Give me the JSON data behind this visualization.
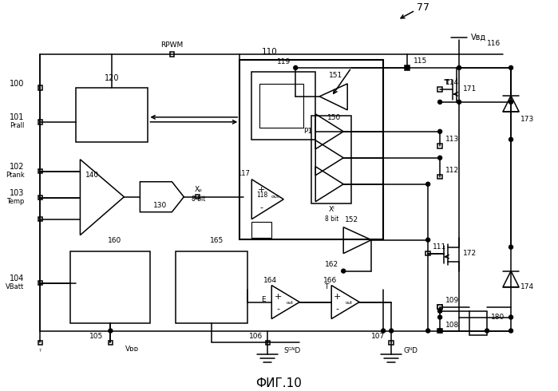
{
  "bg": "#ffffff",
  "lc": "#000000",
  "title": "ФИГ.10",
  "figsize": [
    6.99,
    4.9
  ],
  "dpi": 100,
  "labels": {
    "77": "77",
    "100": "100",
    "101": "101",
    "102": "102",
    "103": "103",
    "104": "104",
    "105": "105",
    "106": "106",
    "107": "107",
    "108": "108",
    "109": "109",
    "110": "110",
    "111": "111",
    "112": "112",
    "113": "113",
    "114": "114",
    "115": "115",
    "116": "116",
    "117": "117",
    "118": "118",
    "119": "119",
    "120a": "120",
    "120b": "120",
    "130": "130",
    "140": "140",
    "150": "150",
    "151": "151",
    "152": "152",
    "160": "160",
    "162": "162",
    "164": "164",
    "165": "165",
    "166": "166",
    "171": "171",
    "172": "172",
    "173": "173",
    "174": "174",
    "180": "180",
    "RPWM": "RPWM",
    "Prall": "Prall",
    "Ptank": "Ptank",
    "Temp": "Temp",
    "VBatt": "VBatt",
    "VDD": "Vᴅᴅ",
    "SGND": "SᴳᴺD",
    "GND": "GᴺD",
    "VBD": "Vвд",
    "XP": "Xₚ",
    "XI": "Xᴵ",
    "P1": "P1",
    "8bit": "8 bit",
    "E": "E",
    "T": "T",
    "OUT": "OUT",
    "plus": "+",
    "minus": "-"
  }
}
